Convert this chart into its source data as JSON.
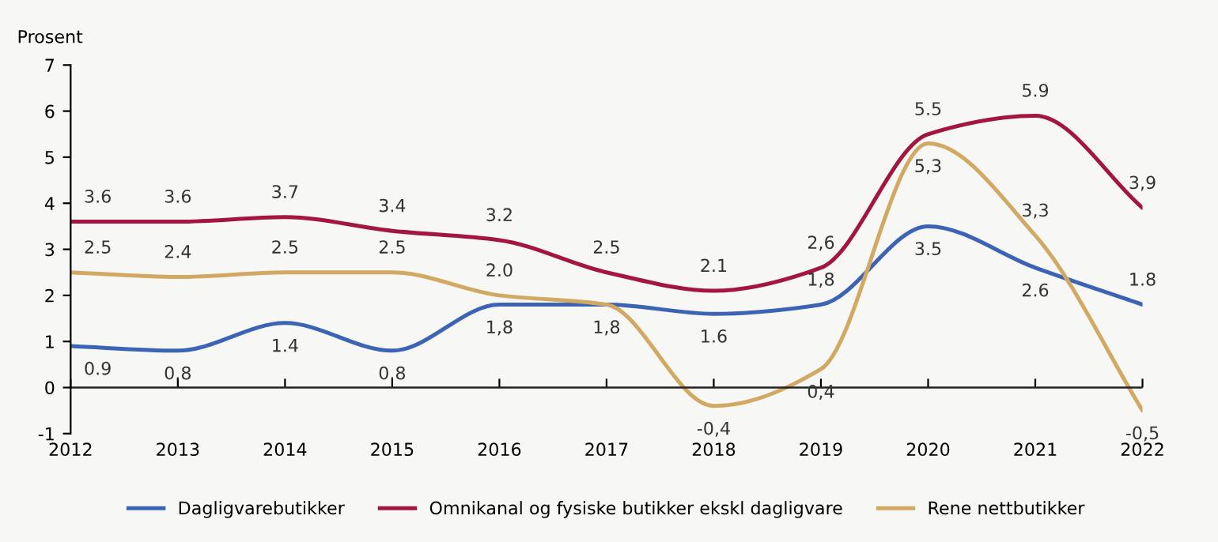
{
  "chart_data": {
    "type": "line",
    "ylabel": "Prosent",
    "x": [
      2012,
      2013,
      2014,
      2015,
      2016,
      2017,
      2018,
      2019,
      2020,
      2021,
      2022
    ],
    "xlim": [
      2012,
      2022
    ],
    "xticks": [
      2012,
      2013,
      2014,
      2015,
      2016,
      2017,
      2018,
      2019,
      2020,
      2021,
      2022
    ],
    "ylim": [
      -1,
      7
    ],
    "yticks": [
      -1,
      0,
      1,
      2,
      3,
      4,
      5,
      6,
      7
    ],
    "grid": false,
    "ref_lines": [
      {
        "axis": "y",
        "value": 0,
        "color": "#222222",
        "line_style": "solid"
      }
    ],
    "legend": "bottom",
    "marker": "none",
    "line_style": "solid",
    "series": [
      {
        "name": "Dagligvarebutikker",
        "color": "#3d64b4",
        "values": [
          0.9,
          0.8,
          1.4,
          0.8,
          1.8,
          1.8,
          1.6,
          1.8,
          3.5,
          2.6,
          1.8
        ],
        "value_labels": [
          "0.9",
          "0.8",
          "1.4",
          "0.8",
          "1,8",
          null,
          "1.6",
          "1,8",
          "3.5",
          "2.6",
          "1.8"
        ]
      },
      {
        "name": "Omnikanal og fysiske butikker ekskl dagligvare",
        "color": "#a3163f",
        "values": [
          3.6,
          3.6,
          3.7,
          3.4,
          3.2,
          2.5,
          2.1,
          2.6,
          5.5,
          5.9,
          3.9
        ],
        "value_labels": [
          "3.6",
          "3.6",
          "3.7",
          "3.4",
          "3.2",
          "2.5",
          "2.1",
          "2,6",
          "5.5",
          "5.9",
          "3,9"
        ]
      },
      {
        "name": "Rene nettbutikker",
        "color": "#d1a962",
        "values": [
          2.5,
          2.4,
          2.5,
          2.5,
          2.0,
          1.8,
          -0.4,
          0.4,
          5.3,
          3.3,
          -0.5
        ],
        "value_labels": [
          "2.5",
          "2.4",
          "2.5",
          "2.5",
          "2.0",
          "1,8",
          "-0,4",
          "0,4",
          "5,3",
          "3,3",
          "-0,5"
        ]
      }
    ]
  }
}
